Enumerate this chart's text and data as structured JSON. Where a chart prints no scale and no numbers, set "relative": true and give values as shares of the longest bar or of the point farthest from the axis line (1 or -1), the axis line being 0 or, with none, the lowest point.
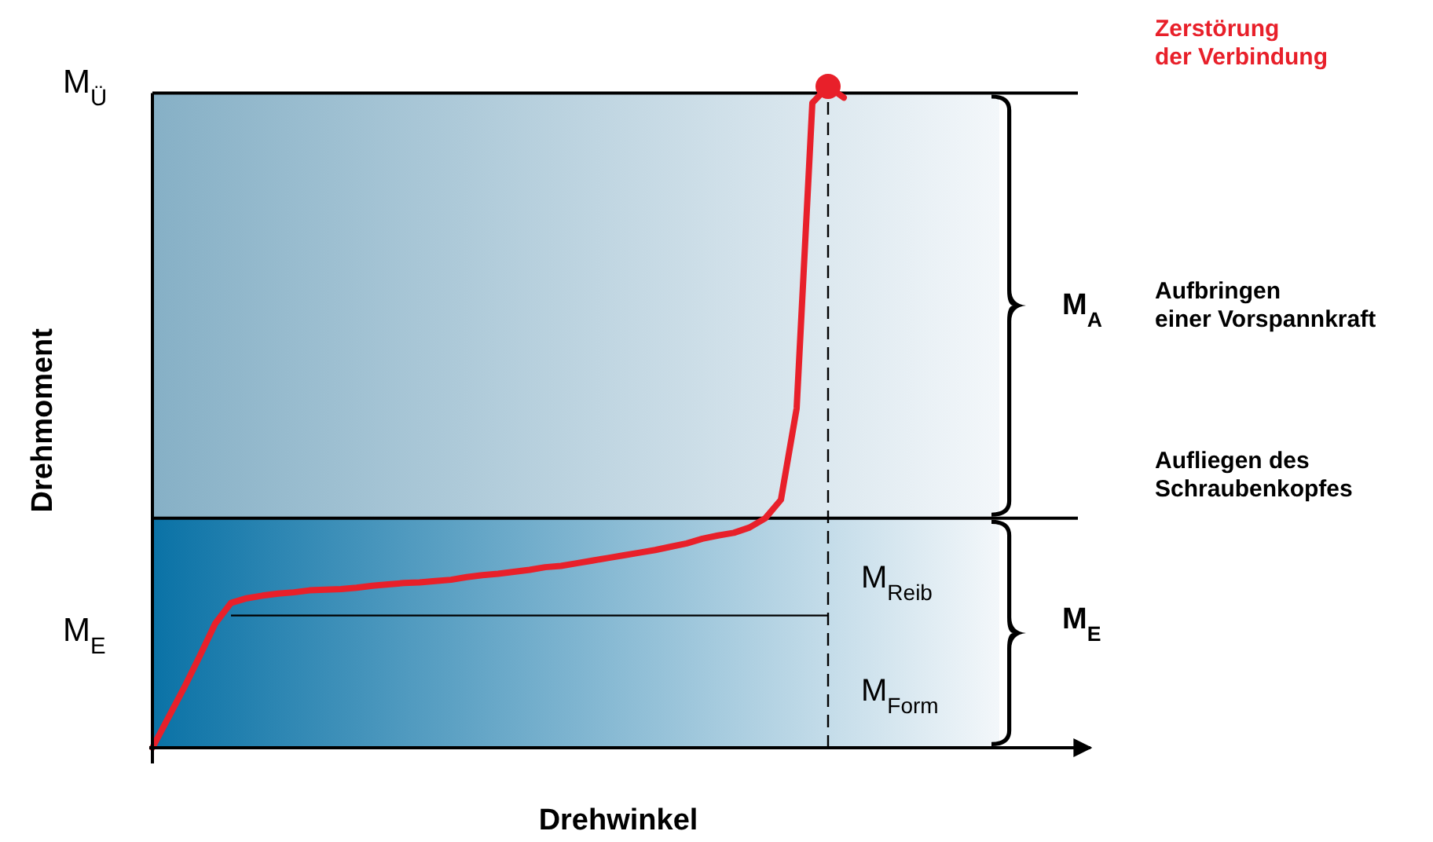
{
  "chart_data": {
    "type": "line",
    "relative": true,
    "xlabel": "Drehwinkel",
    "ylabel": "Drehmoment",
    "categories": [
      null,
      null,
      null,
      null,
      null,
      null,
      null,
      null,
      null,
      null,
      null,
      null,
      null,
      null,
      null,
      null,
      null,
      null,
      null,
      null,
      null,
      null,
      null,
      null,
      null,
      null,
      null,
      null,
      null,
      null,
      null,
      null,
      null,
      null,
      null,
      null,
      null,
      null,
      null,
      null,
      null,
      null,
      null,
      null,
      null,
      null,
      null,
      null,
      null,
      null,
      null,
      null,
      null,
      null,
      null,
      null,
      null,
      null,
      null,
      null
    ],
    "bands": [
      {
        "axis": "y",
        "from": 0,
        "to": 0.347,
        "color": "#0a72a6"
      },
      {
        "axis": "y",
        "from": 0.347,
        "to": 0.99,
        "color": "#86b0c6"
      }
    ],
    "ref_lines": [
      {
        "axis": "y",
        "value": 0.99,
        "color": "#000000"
      },
      {
        "axis": "y",
        "value": 0.347,
        "color": "#000000"
      },
      {
        "axis": "y",
        "value": 0.2,
        "color": "#000000"
      }
    ],
    "series": [
      {
        "color": "#e8202a",
        "values": [
          0,
          0.045,
          0.09,
          0.138,
          0.188,
          0.219,
          0.226,
          0.23,
          0.233,
          0.235,
          0.238,
          0.239,
          0.24,
          0.242,
          0.245,
          0.247,
          0.249,
          0.25,
          0.252,
          0.254,
          0.258,
          0.261,
          0.263,
          0.266,
          0.269,
          0.273,
          0.275,
          0.279,
          0.283,
          0.287,
          0.291,
          0.295,
          0.299,
          0.304,
          0.309,
          0.316,
          0.321,
          0.325,
          0.333,
          0.347,
          0.375,
          0.513,
          0.975,
          1.0,
          0.983,
          null,
          null,
          null,
          null,
          null,
          null,
          null,
          null,
          null,
          null,
          null,
          null,
          null,
          null,
          null
        ]
      }
    ],
    "annotations": [
      "M$_{Ü}$",
      "M$_{E}$",
      "Zerstörung\nder Verbindung",
      "M$_{A}$",
      "Aufbringen\neiner Vorspannkraft",
      "Aufliegen des\nSchraubenkopfes",
      "M$_{E}$",
      "M$_{Reib}$",
      "M$_{Form}$"
    ]
  }
}
